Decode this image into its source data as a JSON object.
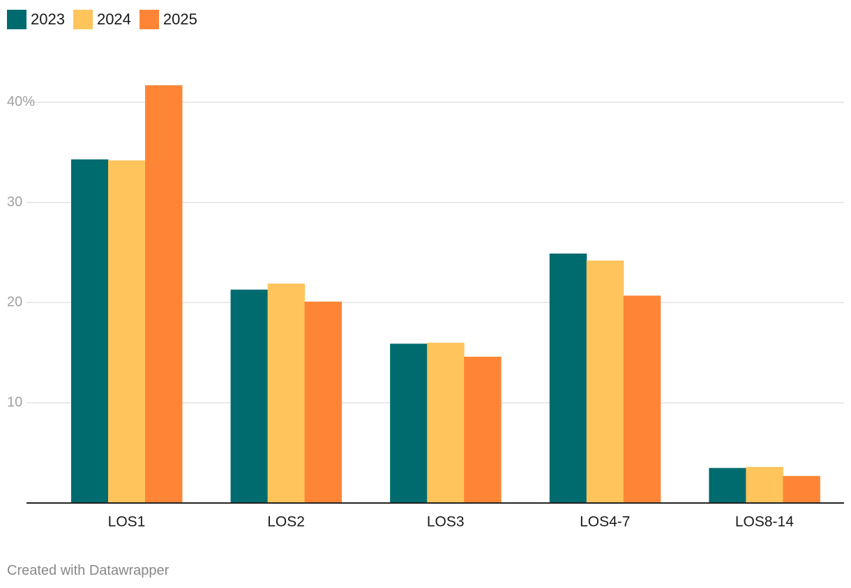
{
  "chart_data": {
    "type": "bar",
    "categories": [
      "LOS1",
      "LOS2",
      "LOS3",
      "LOS4-7",
      "LOS8-14"
    ],
    "series": [
      {
        "name": "2023",
        "color": "#006b6e",
        "values": [
          34.3,
          21.3,
          15.9,
          24.9,
          3.5
        ]
      },
      {
        "name": "2024",
        "color": "#ffc45c",
        "values": [
          34.2,
          21.9,
          16.0,
          24.2,
          3.6
        ]
      },
      {
        "name": "2025",
        "color": "#ff8536",
        "values": [
          41.7,
          20.1,
          14.6,
          20.7,
          2.7
        ]
      }
    ],
    "yticks": [
      {
        "value": 10,
        "label": "10"
      },
      {
        "value": 20,
        "label": "20"
      },
      {
        "value": 30,
        "label": "30"
      },
      {
        "value": 40,
        "label": "40%"
      }
    ],
    "ylim": [
      0,
      45
    ],
    "grid": true,
    "legend_position": "top-left"
  },
  "legend": {
    "items": [
      {
        "label": "2023",
        "color": "#006b6e"
      },
      {
        "label": "2024",
        "color": "#ffc45c"
      },
      {
        "label": "2025",
        "color": "#ff8536"
      }
    ]
  },
  "footer": {
    "credit": "Created with Datawrapper"
  }
}
